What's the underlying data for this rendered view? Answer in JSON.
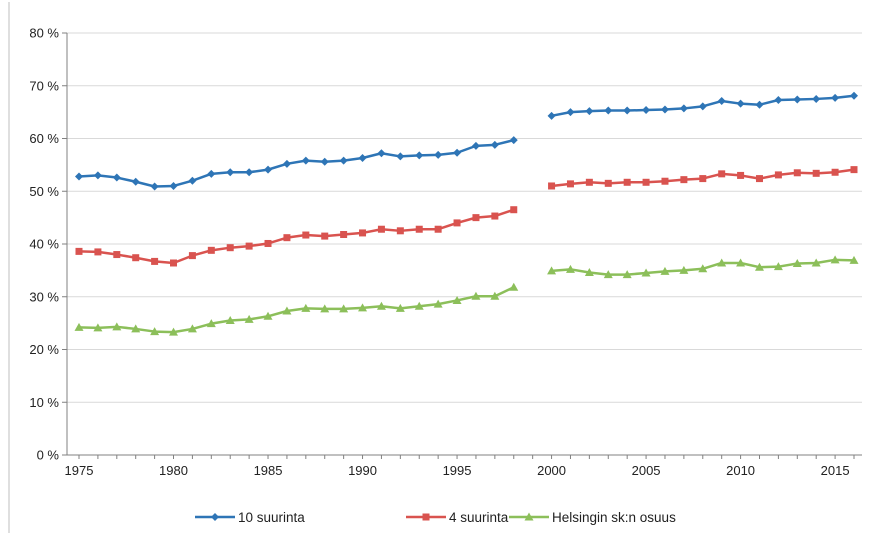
{
  "chart_data": {
    "type": "line",
    "title": "",
    "xlabel": "",
    "ylabel": "",
    "ylim": [
      0,
      80
    ],
    "xlim": [
      1975,
      2016
    ],
    "grid": true,
    "legend_position": "bottom",
    "y_ticks": [
      "0 %",
      "10 %",
      "20 %",
      "30 %",
      "40 %",
      "50 %",
      "60 %",
      "70 %",
      "80 %"
    ],
    "x_ticks": [
      "1975",
      "1980",
      "1985",
      "1990",
      "1995",
      "2000",
      "2005",
      "2010",
      "2015"
    ],
    "x": [
      1975,
      1976,
      1977,
      1978,
      1979,
      1980,
      1981,
      1982,
      1983,
      1984,
      1985,
      1986,
      1987,
      1988,
      1989,
      1990,
      1991,
      1992,
      1993,
      1994,
      1995,
      1996,
      1997,
      1998,
      1999,
      2000,
      2001,
      2002,
      2003,
      2004,
      2005,
      2006,
      2007,
      2008,
      2009,
      2010,
      2011,
      2012,
      2013,
      2014,
      2015,
      2016
    ],
    "series": [
      {
        "name": "10 suurinta",
        "color": "#2e75b6",
        "marker": "diamond",
        "values": [
          52.8,
          53.0,
          52.6,
          51.8,
          50.9,
          51.0,
          52.0,
          53.3,
          53.6,
          53.6,
          54.1,
          55.2,
          55.8,
          55.6,
          55.8,
          56.3,
          57.2,
          56.6,
          56.8,
          56.9,
          57.3,
          58.6,
          58.8,
          59.7,
          null,
          64.3,
          65.0,
          65.2,
          65.3,
          65.3,
          65.4,
          65.5,
          65.7,
          66.1,
          67.1,
          66.6,
          66.4,
          67.3,
          67.4,
          67.5,
          67.7,
          68.1
        ]
      },
      {
        "name": "4 suurinta",
        "color": "#d9534f",
        "marker": "square",
        "values": [
          38.6,
          38.5,
          38.0,
          37.4,
          36.7,
          36.4,
          37.8,
          38.8,
          39.3,
          39.6,
          40.1,
          41.2,
          41.7,
          41.5,
          41.8,
          42.1,
          42.8,
          42.5,
          42.8,
          42.8,
          44.0,
          45.0,
          45.3,
          46.5,
          null,
          51.0,
          51.4,
          51.7,
          51.5,
          51.7,
          51.7,
          51.9,
          52.2,
          52.4,
          53.3,
          53.0,
          52.4,
          53.1,
          53.5,
          53.4,
          53.6,
          54.1
        ]
      },
      {
        "name": "Helsingin sk:n osuus",
        "color": "#8cbf5a",
        "marker": "triangle",
        "values": [
          24.2,
          24.1,
          24.3,
          23.9,
          23.4,
          23.3,
          23.9,
          24.9,
          25.5,
          25.7,
          26.3,
          27.3,
          27.8,
          27.7,
          27.7,
          27.9,
          28.2,
          27.8,
          28.2,
          28.6,
          29.3,
          30.1,
          30.1,
          31.8,
          null,
          34.9,
          35.2,
          34.6,
          34.2,
          34.2,
          34.5,
          34.8,
          35.0,
          35.3,
          36.4,
          36.4,
          35.6,
          35.7,
          36.3,
          36.4,
          37.0,
          36.9
        ]
      }
    ]
  }
}
